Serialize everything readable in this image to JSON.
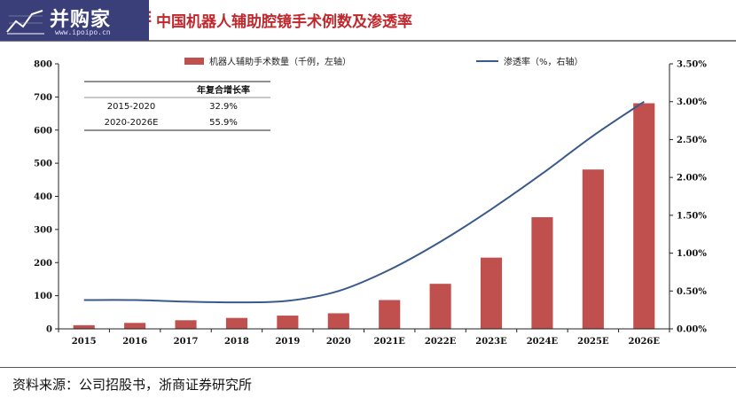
{
  "header": {
    "logo_text": "并购家",
    "logo_url": "www.ipoipo.cn",
    "title_prefix": "E",
    "title": "中国机器人辅助腔镜手术例数及渗透率"
  },
  "source": "资料来源：公司招股书，浙商证券研究所",
  "legend": {
    "bar_label": "机器人辅助手术数量（千例，左轴）",
    "line_label": "渗透率（%，右轴）"
  },
  "growth_table": {
    "header": "年复合增长率",
    "rows": [
      {
        "period": "2015-2020",
        "rate": "32.9%"
      },
      {
        "period": "2020-2026E",
        "rate": "55.9%"
      }
    ]
  },
  "colors": {
    "bar": "#c0504d",
    "line": "#3a5a8c",
    "title": "#c0282d",
    "logo_bg": "#3a3f7a"
  },
  "chart_data": {
    "type": "bar",
    "categories": [
      "2015",
      "2016",
      "2017",
      "2018",
      "2019",
      "2020",
      "2021E",
      "2022E",
      "2023E",
      "2024E",
      "2025E",
      "2026E"
    ],
    "series": [
      {
        "name": "机器人辅助手术数量（千例，左轴）",
        "type": "bar",
        "axis": "left",
        "values": [
          11,
          18,
          26,
          33,
          40,
          47,
          87,
          136,
          215,
          337,
          481,
          681
        ]
      },
      {
        "name": "渗透率（%，右轴）",
        "type": "line",
        "axis": "right",
        "values": [
          0.38,
          0.38,
          0.36,
          0.35,
          0.37,
          0.5,
          0.78,
          1.15,
          1.58,
          2.05,
          2.55,
          3.0
        ]
      }
    ],
    "ylim_left": [
      0,
      800
    ],
    "yticks_left": [
      "0",
      "100",
      "200",
      "300",
      "400",
      "500",
      "600",
      "700",
      "800"
    ],
    "ylim_right": [
      0,
      3.5
    ],
    "yticks_right": [
      "0.00%",
      "0.50%",
      "1.00%",
      "1.50%",
      "2.00%",
      "2.50%",
      "3.00%",
      "3.50%"
    ],
    "legend_position": "top"
  }
}
